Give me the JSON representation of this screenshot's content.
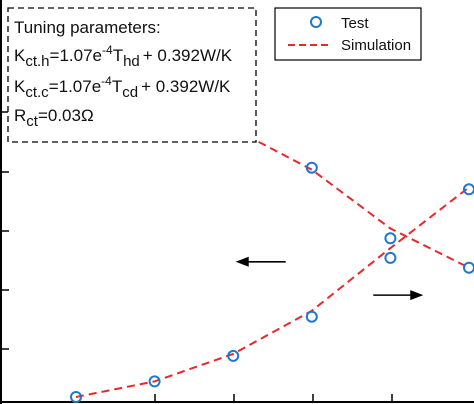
{
  "chart_data": {
    "type": "line",
    "x": [
      1,
      2,
      3,
      4,
      5,
      6
    ],
    "series": [
      {
        "name": "Test",
        "style": "markers",
        "marker": "circle",
        "color": "#1f77d0",
        "curves": [
          {
            "y": [
              9.1,
              8.1,
              7.05,
              5.9,
              4.1,
              3.35
            ]
          },
          {
            "y": [
              0.05,
              0.45,
              1.1,
              2.1,
              3.6,
              5.35
            ]
          }
        ]
      },
      {
        "name": "Simulation",
        "style": "dashed",
        "color": "#e8282b",
        "curves": [
          {
            "y": [
              9.1,
              8.0,
              6.9,
              5.85,
              4.35,
              3.35
            ]
          },
          {
            "y": [
              0.05,
              0.45,
              1.15,
              2.25,
              3.85,
              5.4
            ]
          }
        ]
      }
    ],
    "legend": {
      "position": "top-right",
      "entries": [
        "Test",
        "Simulation"
      ]
    },
    "grid": false,
    "annotation_box": {
      "title": "Tuning parameters:",
      "lines": [
        {
          "base": "K",
          "sub": "ct.h",
          "mid": "=1.07e",
          "sup": "-4",
          "mid2": "T",
          "sub2": "hd",
          "tail": "+ 0.392W/K"
        },
        {
          "base": "K",
          "sub": "ct.c",
          "mid": "=1.07e",
          "sup": "-4",
          "mid2": "T",
          "sub2": "cd",
          "tail": "+ 0.392W/K"
        },
        {
          "base": "R",
          "sub": "ct",
          "mid": "=0.03Ω",
          "sup": "",
          "mid2": "",
          "sub2": "",
          "tail": ""
        }
      ]
    },
    "arrows": [
      {
        "direction": "left",
        "at_x": 3.35,
        "at_y": 3.5
      },
      {
        "direction": "right",
        "at_x": 5.1,
        "at_y": 2.65
      }
    ]
  }
}
